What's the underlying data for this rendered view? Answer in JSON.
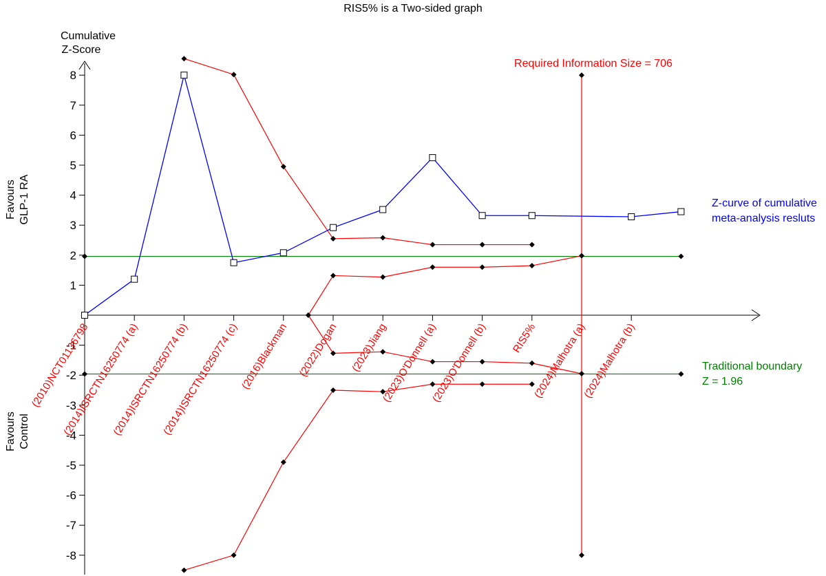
{
  "chart_data": {
    "type": "line",
    "title": "RIS5% is a Two-sided graph",
    "ylabel_line1": "Cumulative",
    "ylabel_line2": "Z-Score",
    "favours_top_line1": "Favours",
    "favours_top_line2": "GLP-1 RA",
    "favours_bottom_line1": "Favours",
    "favours_bottom_line2": "Control",
    "ylim": [
      -8.5,
      8.5
    ],
    "yticks": [
      8,
      7,
      6,
      5,
      4,
      3,
      2,
      1,
      -1,
      -2,
      -3,
      -4,
      -5,
      -6,
      -7,
      -8
    ],
    "categories": [
      "(2010)NCT01136798",
      "(2014)ISRCTN16250774 (a)",
      "(2014)ISRCTN16250774 (b)",
      "(2014)ISRCTN16250774 (c)",
      "(2016)Blackman",
      "(2022)Dogan",
      "(2023)Jiang",
      "(2023)O'Donnell (a)",
      "(2023)O'Donnell (b)",
      "RIS5%",
      "(2024)Malhotra (a)",
      "(2024)Malhotra (b)"
    ],
    "z_curve": {
      "name_line1": "Z-curve of cumulative",
      "name_line2": "meta-analysis resluts",
      "color": "#0000ff",
      "points": [
        [
          0,
          0
        ],
        [
          1,
          1.2
        ],
        [
          2,
          8.0
        ],
        [
          3,
          1.75
        ],
        [
          4,
          2.08
        ],
        [
          5,
          2.92
        ],
        [
          6,
          3.52
        ],
        [
          7,
          5.25
        ],
        [
          8,
          3.32
        ],
        [
          9,
          3.32
        ],
        [
          11,
          3.28
        ],
        [
          12,
          3.45
        ]
      ]
    },
    "boundary_upper_outer": {
      "color": "#ff0000",
      "points": [
        [
          2,
          8.55
        ],
        [
          3,
          8.02
        ],
        [
          4,
          4.95
        ],
        [
          5,
          2.55
        ],
        [
          6,
          2.58
        ],
        [
          7,
          2.35
        ],
        [
          8,
          2.35
        ],
        [
          9,
          2.35
        ]
      ]
    },
    "boundary_upper_inner": {
      "color": "#ff0000",
      "points": [
        [
          4.5,
          0
        ],
        [
          5,
          1.32
        ],
        [
          6,
          1.27
        ],
        [
          7,
          1.6
        ],
        [
          8,
          1.6
        ],
        [
          9,
          1.65
        ],
        [
          10,
          1.98
        ]
      ]
    },
    "boundary_lower_inner": {
      "color": "#ff0000",
      "points": [
        [
          4.5,
          0
        ],
        [
          5,
          -1.27
        ],
        [
          6,
          -1.22
        ],
        [
          7,
          -1.55
        ],
        [
          8,
          -1.55
        ],
        [
          9,
          -1.6
        ],
        [
          10,
          -1.95
        ]
      ]
    },
    "boundary_lower_outer": {
      "color": "#ff0000",
      "points": [
        [
          2,
          -8.5
        ],
        [
          3,
          -8.0
        ],
        [
          4,
          -4.9
        ],
        [
          5,
          -2.5
        ],
        [
          6,
          -2.55
        ],
        [
          7,
          -2.3
        ],
        [
          8,
          -2.3
        ],
        [
          9,
          -2.3
        ]
      ]
    },
    "traditional_boundary": {
      "label_line1": "Traditional boundary",
      "label_line2": "Z = 1.96",
      "value": 1.96,
      "color": "#008000"
    },
    "ris": {
      "label": "Required Information Size = 706",
      "x": 10,
      "color": "#ff0000"
    }
  }
}
